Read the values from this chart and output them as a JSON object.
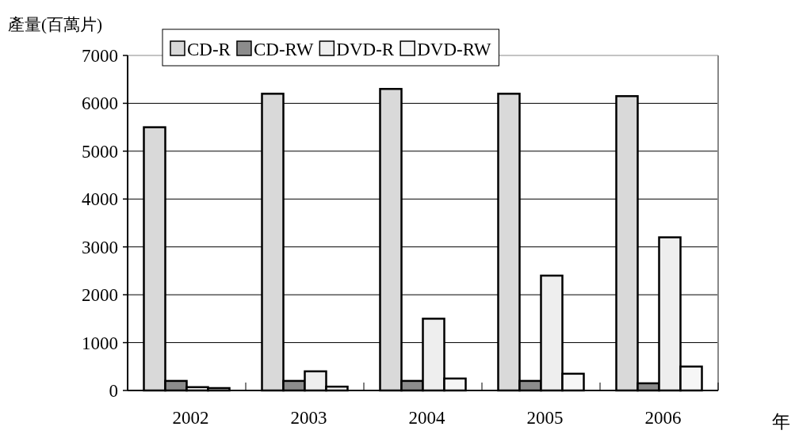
{
  "chart_data": {
    "type": "bar",
    "xlabel": "年",
    "ylabel": "產量(百萬片)",
    "categories": [
      "2002",
      "2003",
      "2004",
      "2005",
      "2006"
    ],
    "series": [
      {
        "name": "CD-R",
        "color": "#d9d9d9",
        "values": [
          5500,
          6200,
          6300,
          6200,
          6150
        ]
      },
      {
        "name": "CD-RW",
        "color": "#8c8c8c",
        "values": [
          200,
          200,
          200,
          200,
          150
        ]
      },
      {
        "name": "DVD-R",
        "color": "#eeeeee",
        "values": [
          70,
          400,
          1500,
          2400,
          3200
        ]
      },
      {
        "name": "DVD-RW",
        "color": "#f6f6f6",
        "values": [
          50,
          80,
          250,
          350,
          500
        ]
      }
    ],
    "ylim": [
      0,
      7000
    ],
    "yticks": [
      0,
      1000,
      2000,
      3000,
      4000,
      5000,
      6000,
      7000
    ],
    "grid": "y",
    "legend": "top"
  }
}
